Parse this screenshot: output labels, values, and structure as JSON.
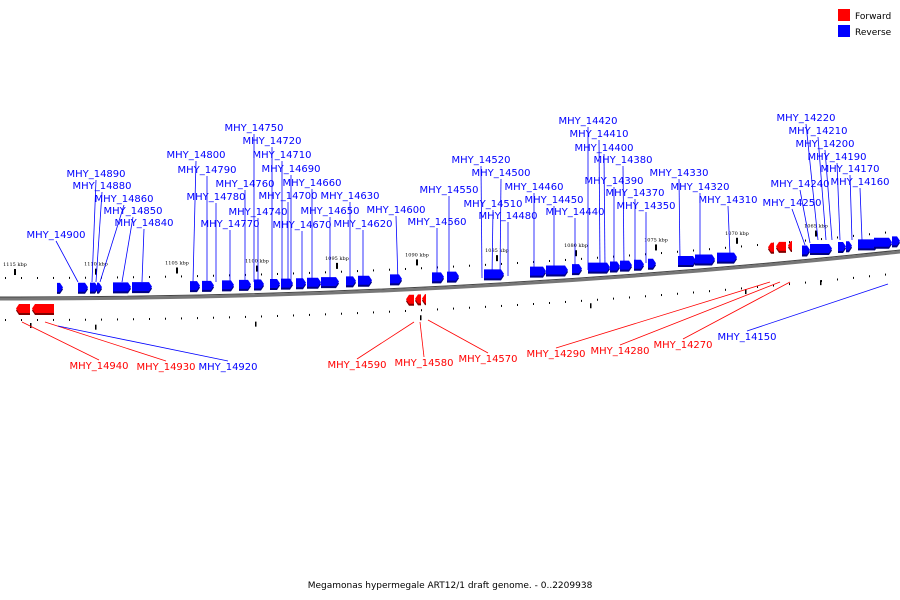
{
  "legend": {
    "forward_label": "Forward",
    "reverse_label": "Reverse",
    "forward_color": "#ff0000",
    "reverse_color": "#0000ff"
  },
  "caption": "Megamonas hypermegale ART12/1 draft genome. - 0..2209938",
  "scale_ticks": [
    "1115 kbp",
    "1110 kbp",
    "1105 kbp",
    "1100 kbp",
    "1095 kbp",
    "1090 kbp",
    "1085 kbp",
    "1080 kbp",
    "1075 kbp",
    "1070 kbp",
    "1065 kbp"
  ],
  "reverse_genes": [
    "MHY_14900",
    "MHY_14890",
    "MHY_14880",
    "MHY_14860",
    "MHY_14850",
    "MHY_14840",
    "MHY_14800",
    "MHY_14790",
    "MHY_14780",
    "MHY_14770",
    "MHY_14760",
    "MHY_14750",
    "MHY_14740",
    "MHY_14720",
    "MHY_14710",
    "MHY_14700",
    "MHY_14690",
    "MHY_14670",
    "MHY_14660",
    "MHY_14650",
    "MHY_14630",
    "MHY_14620",
    "MHY_14600",
    "MHY_14560",
    "MHY_14550",
    "MHY_14520",
    "MHY_14510",
    "MHY_14500",
    "MHY_14480",
    "MHY_14460",
    "MHY_14450",
    "MHY_14440",
    "MHY_14420",
    "MHY_14410",
    "MHY_14400",
    "MHY_14390",
    "MHY_14380",
    "MHY_14370",
    "MHY_14350",
    "MHY_14330",
    "MHY_14320",
    "MHY_14310",
    "MHY_14250",
    "MHY_14240",
    "MHY_14220",
    "MHY_14210",
    "MHY_14200",
    "MHY_14190",
    "MHY_14170",
    "MHY_14160"
  ],
  "forward_genes": [
    "MHY_14940",
    "MHY_14930",
    "MHY_14590",
    "MHY_14580",
    "MHY_14570",
    "MHY_14290",
    "MHY_14280",
    "MHY_14270"
  ],
  "lower_reverse_genes": [
    "MHY_14920",
    "MHY_14150"
  ]
}
